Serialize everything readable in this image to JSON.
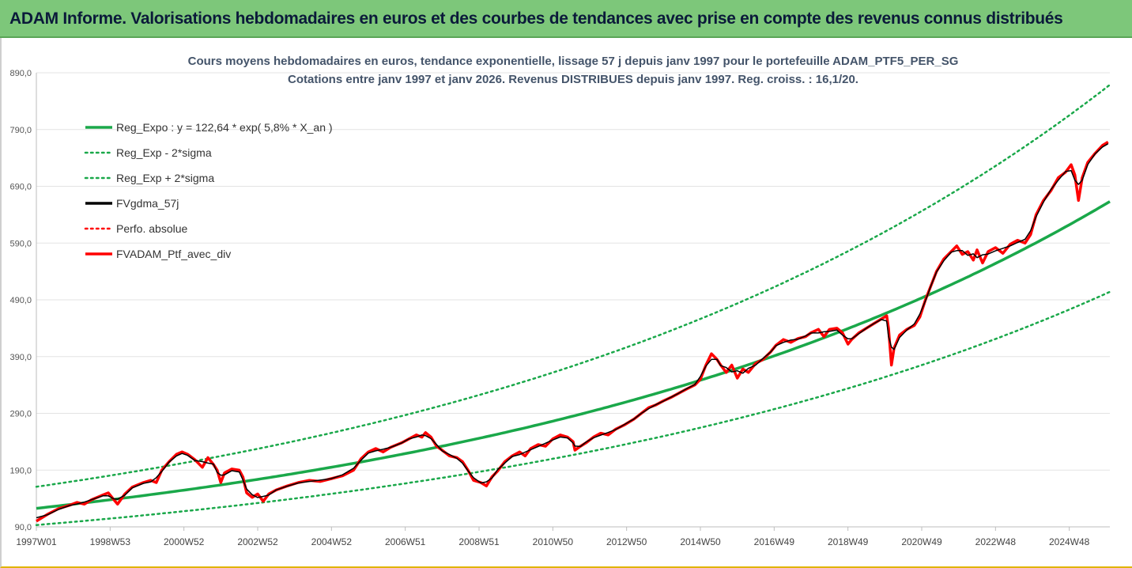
{
  "banner": {
    "title": "ADAM Informe. Valorisations hebdomadaires en euros et des courbes de tendances avec prise en compte des revenus connus distribués"
  },
  "chart_data": {
    "type": "line",
    "title": "Cours moyens hebdomadaires  en euros, tendance exponentielle, lissage 57 j depuis janv 1997 pour le portefeuille ADAM_PTF5_PER_SG",
    "subtitle": "Cotations entre janv 1997 et janv 2026. Revenus DISTRIBUES depuis janv 1997. Reg. croiss. : 16,1/20.",
    "xlabel": "",
    "ylabel": "",
    "ylim": [
      90,
      890
    ],
    "xlim": [
      1997.0,
      2026.1
    ],
    "yticks": [
      "90,0",
      "190,0",
      "290,0",
      "390,0",
      "490,0",
      "590,0",
      "690,0",
      "790,0",
      "890,0"
    ],
    "xticks": [
      {
        "label": "1997W01",
        "x": 1997.0
      },
      {
        "label": "1998W53",
        "x": 1999.0
      },
      {
        "label": "2000W52",
        "x": 2001.0
      },
      {
        "label": "2002W52",
        "x": 2003.0
      },
      {
        "label": "2004W52",
        "x": 2005.0
      },
      {
        "label": "2006W51",
        "x": 2007.0
      },
      {
        "label": "2008W51",
        "x": 2009.0
      },
      {
        "label": "2010W50",
        "x": 2011.0
      },
      {
        "label": "2012W50",
        "x": 2013.0
      },
      {
        "label": "2014W50",
        "x": 2015.0
      },
      {
        "label": "2016W49",
        "x": 2017.0
      },
      {
        "label": "2018W49",
        "x": 2019.0
      },
      {
        "label": "2020W49",
        "x": 2021.0
      },
      {
        "label": "2022W48",
        "x": 2023.0
      },
      {
        "label": "2024W48",
        "x": 2025.0
      }
    ],
    "legend_placement": "top-left",
    "grid": "horizontal",
    "series": [
      {
        "name": "Reg_Expo : y = 122,64 * exp( 5,8% *  X_an )",
        "color": "#1aa84a",
        "style": "solid",
        "role": "reg"
      },
      {
        "name": "Reg_Exp - 2*sigma",
        "color": "#1aa84a",
        "style": "dotted",
        "role": "reg_minus"
      },
      {
        "name": "Reg_Exp + 2*sigma",
        "color": "#1aa84a",
        "style": "dotted",
        "role": "reg_plus"
      },
      {
        "name": "FVgdma_57j",
        "color": "#000000",
        "style": "solid",
        "role": "smooth"
      },
      {
        "name": "Perfo. absolue",
        "color": "#ff0000",
        "style": "dotted",
        "role": "absolute"
      },
      {
        "name": "FVADAM_Ptf_avec_div",
        "color": "#ff0000",
        "style": "solid",
        "role": "main"
      }
    ],
    "regression": {
      "a": 122.64,
      "rate": 0.058,
      "x0": 1997.0,
      "sigma_lower_factor": 0.76,
      "sigma_upper_factor": 1.31
    },
    "main_series": [
      [
        1997.0,
        100
      ],
      [
        1997.3,
        112
      ],
      [
        1997.6,
        122
      ],
      [
        1997.9,
        128
      ],
      [
        1998.1,
        133
      ],
      [
        1998.3,
        130
      ],
      [
        1998.5,
        138
      ],
      [
        1998.8,
        146
      ],
      [
        1998.95,
        150
      ],
      [
        1999.1,
        138
      ],
      [
        1999.2,
        130
      ],
      [
        1999.4,
        148
      ],
      [
        1999.6,
        160
      ],
      [
        1999.9,
        168
      ],
      [
        2000.1,
        172
      ],
      [
        2000.25,
        168
      ],
      [
        2000.4,
        190
      ],
      [
        2000.6,
        205
      ],
      [
        2000.8,
        218
      ],
      [
        2000.95,
        222
      ],
      [
        2001.1,
        218
      ],
      [
        2001.3,
        208
      ],
      [
        2001.5,
        195
      ],
      [
        2001.65,
        212
      ],
      [
        2001.8,
        200
      ],
      [
        2001.9,
        190
      ],
      [
        2002.0,
        168
      ],
      [
        2002.1,
        185
      ],
      [
        2002.3,
        192
      ],
      [
        2002.5,
        190
      ],
      [
        2002.6,
        178
      ],
      [
        2002.7,
        150
      ],
      [
        2002.85,
        142
      ],
      [
        2003.0,
        148
      ],
      [
        2003.15,
        135
      ],
      [
        2003.3,
        148
      ],
      [
        2003.5,
        155
      ],
      [
        2003.8,
        162
      ],
      [
        2004.1,
        168
      ],
      [
        2004.4,
        172
      ],
      [
        2004.7,
        170
      ],
      [
        2005.0,
        175
      ],
      [
        2005.3,
        180
      ],
      [
        2005.6,
        190
      ],
      [
        2005.8,
        210
      ],
      [
        2006.0,
        222
      ],
      [
        2006.2,
        228
      ],
      [
        2006.4,
        222
      ],
      [
        2006.6,
        230
      ],
      [
        2006.9,
        238
      ],
      [
        2007.1,
        245
      ],
      [
        2007.3,
        252
      ],
      [
        2007.45,
        248
      ],
      [
        2007.55,
        256
      ],
      [
        2007.7,
        248
      ],
      [
        2007.85,
        232
      ],
      [
        2008.0,
        225
      ],
      [
        2008.2,
        215
      ],
      [
        2008.4,
        212
      ],
      [
        2008.55,
        205
      ],
      [
        2008.7,
        190
      ],
      [
        2008.85,
        172
      ],
      [
        2009.05,
        168
      ],
      [
        2009.2,
        162
      ],
      [
        2009.35,
        178
      ],
      [
        2009.5,
        188
      ],
      [
        2009.7,
        205
      ],
      [
        2009.9,
        215
      ],
      [
        2010.1,
        222
      ],
      [
        2010.25,
        215
      ],
      [
        2010.4,
        228
      ],
      [
        2010.6,
        235
      ],
      [
        2010.8,
        232
      ],
      [
        2011.0,
        245
      ],
      [
        2011.2,
        252
      ],
      [
        2011.4,
        248
      ],
      [
        2011.55,
        240
      ],
      [
        2011.6,
        225
      ],
      [
        2011.75,
        232
      ],
      [
        2011.9,
        238
      ],
      [
        2012.1,
        248
      ],
      [
        2012.3,
        255
      ],
      [
        2012.5,
        252
      ],
      [
        2012.7,
        262
      ],
      [
        2012.95,
        270
      ],
      [
        2013.2,
        280
      ],
      [
        2013.4,
        290
      ],
      [
        2013.6,
        300
      ],
      [
        2013.8,
        305
      ],
      [
        2014.0,
        312
      ],
      [
        2014.2,
        318
      ],
      [
        2014.4,
        325
      ],
      [
        2014.6,
        332
      ],
      [
        2014.85,
        340
      ],
      [
        2015.0,
        350
      ],
      [
        2015.15,
        375
      ],
      [
        2015.3,
        395
      ],
      [
        2015.45,
        385
      ],
      [
        2015.55,
        375
      ],
      [
        2015.7,
        362
      ],
      [
        2015.85,
        375
      ],
      [
        2016.0,
        352
      ],
      [
        2016.15,
        368
      ],
      [
        2016.3,
        362
      ],
      [
        2016.5,
        378
      ],
      [
        2016.7,
        385
      ],
      [
        2016.9,
        398
      ],
      [
        2017.05,
        410
      ],
      [
        2017.25,
        420
      ],
      [
        2017.45,
        415
      ],
      [
        2017.65,
        422
      ],
      [
        2017.85,
        425
      ],
      [
        2018.0,
        432
      ],
      [
        2018.2,
        438
      ],
      [
        2018.35,
        425
      ],
      [
        2018.5,
        438
      ],
      [
        2018.7,
        440
      ],
      [
        2018.85,
        432
      ],
      [
        2019.0,
        412
      ],
      [
        2019.1,
        420
      ],
      [
        2019.3,
        432
      ],
      [
        2019.5,
        440
      ],
      [
        2019.7,
        448
      ],
      [
        2019.9,
        456
      ],
      [
        2020.05,
        462
      ],
      [
        2020.1,
        440
      ],
      [
        2020.18,
        375
      ],
      [
        2020.25,
        405
      ],
      [
        2020.4,
        428
      ],
      [
        2020.6,
        438
      ],
      [
        2020.8,
        445
      ],
      [
        2020.95,
        460
      ],
      [
        2021.1,
        490
      ],
      [
        2021.25,
        515
      ],
      [
        2021.4,
        540
      ],
      [
        2021.6,
        562
      ],
      [
        2021.8,
        575
      ],
      [
        2021.95,
        585
      ],
      [
        2022.1,
        570
      ],
      [
        2022.25,
        575
      ],
      [
        2022.4,
        560
      ],
      [
        2022.5,
        578
      ],
      [
        2022.65,
        555
      ],
      [
        2022.8,
        575
      ],
      [
        2023.0,
        582
      ],
      [
        2023.2,
        572
      ],
      [
        2023.4,
        588
      ],
      [
        2023.6,
        595
      ],
      [
        2023.8,
        590
      ],
      [
        2023.95,
        605
      ],
      [
        2024.1,
        640
      ],
      [
        2024.3,
        665
      ],
      [
        2024.5,
        682
      ],
      [
        2024.7,
        705
      ],
      [
        2024.9,
        715
      ],
      [
        2025.05,
        728
      ],
      [
        2025.15,
        710
      ],
      [
        2025.25,
        665
      ],
      [
        2025.35,
        705
      ],
      [
        2025.5,
        732
      ],
      [
        2025.7,
        748
      ],
      [
        2025.9,
        762
      ],
      [
        2026.05,
        768
      ]
    ]
  }
}
